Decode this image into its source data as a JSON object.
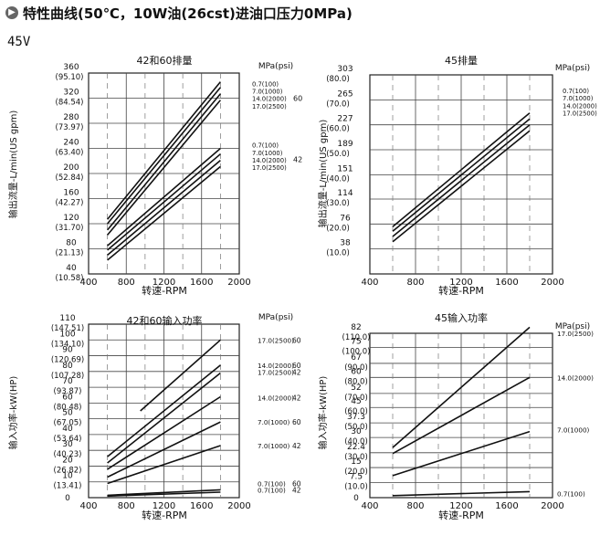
{
  "header": {
    "icon": "arrow-circle-icon",
    "title": "特性曲线(50℃，10W油(26cst)进油口压力0MPa)"
  },
  "model_label": "45V",
  "chart_data": [
    {
      "type": "line",
      "title": "42和60排量",
      "xlabel": "转速-RPM",
      "ylabel": "输出流量-L/min(US gpm)",
      "xlim": [
        400,
        2000
      ],
      "ylim": [
        40,
        360
      ],
      "xticks": [
        "400",
        "800",
        "1200",
        "1600",
        "2000"
      ],
      "yticks": [
        {
          "value": 360,
          "label": "360",
          "alt": "(95.10)"
        },
        {
          "value": 320,
          "label": "320",
          "alt": "(84.54)"
        },
        {
          "value": 280,
          "label": "280",
          "alt": "(73.97)"
        },
        {
          "value": 240,
          "label": "240",
          "alt": "(63.40)"
        },
        {
          "value": 200,
          "label": "200",
          "alt": "(52.84)"
        },
        {
          "value": 160,
          "label": "160",
          "alt": "(42.27)"
        },
        {
          "value": 120,
          "label": "120",
          "alt": "(31.70)"
        },
        {
          "value": 80,
          "label": "80",
          "alt": "(21.13)"
        },
        {
          "value": 40,
          "label": "40",
          "alt": "(10.58)"
        }
      ],
      "unit_label": "MPa(psi)",
      "groups": [
        {
          "label": "60",
          "items": [
            "0.7(100)",
            "7.0(1000)",
            "14.0(2000)",
            "17.0(2500)"
          ],
          "y": 316
        },
        {
          "label": "42",
          "items": [
            "0.7(100)",
            "7.0(1000)",
            "14.0(2000)",
            "17.0(2500)"
          ],
          "y": 218
        }
      ],
      "series": [
        {
          "name": "60 · 0.7(100)",
          "x": [
            600,
            1800
          ],
          "y": [
            127,
            346
          ]
        },
        {
          "name": "60 · 7.0(1000)",
          "x": [
            600,
            1800
          ],
          "y": [
            120,
            337
          ]
        },
        {
          "name": "60 · 14.0(2000)",
          "x": [
            600,
            1800
          ],
          "y": [
            110,
            327
          ]
        },
        {
          "name": "60 · 17.0(2500)",
          "x": [
            600,
            1800
          ],
          "y": [
            102,
            317
          ]
        },
        {
          "name": "42 · 0.7(100)",
          "x": [
            600,
            1800
          ],
          "y": [
            85,
            240
          ]
        },
        {
          "name": "42 · 7.0(1000)",
          "x": [
            600,
            1800
          ],
          "y": [
            78,
            231
          ]
        },
        {
          "name": "42 · 14.0(2000)",
          "x": [
            600,
            1800
          ],
          "y": [
            70,
            221
          ]
        },
        {
          "name": "42 · 17.0(2500)",
          "x": [
            600,
            1800
          ],
          "y": [
            62,
            211
          ]
        }
      ]
    },
    {
      "type": "line",
      "title": "45排量",
      "xlabel": "转速-RPM",
      "ylabel": "输出流量-L/min(US gpm)",
      "xlim": [
        400,
        2000
      ],
      "ylim": [
        0,
        303
      ],
      "xticks": [
        "400",
        "800",
        "1200",
        "1600",
        "2000"
      ],
      "yticks": [
        {
          "value": 303,
          "label": "303",
          "alt": "(80.0)"
        },
        {
          "value": 265,
          "label": "265",
          "alt": "(70.0)"
        },
        {
          "value": 227,
          "label": "227",
          "alt": "(60.0)"
        },
        {
          "value": 189,
          "label": "189",
          "alt": "(50.0)"
        },
        {
          "value": 151,
          "label": "151",
          "alt": "(40.0)"
        },
        {
          "value": 114,
          "label": "114",
          "alt": "(30.0)"
        },
        {
          "value": 76,
          "label": "76",
          "alt": "(20.0)"
        },
        {
          "value": 38,
          "label": "38",
          "alt": "(10.0)"
        }
      ],
      "unit_label": "MPa(psi)",
      "groups": [
        {
          "label": "",
          "items": [
            "0.7(100)",
            "7.0(1000)",
            "14.0(2000)",
            "17.0(2500)"
          ],
          "y": 253
        }
      ],
      "series": [
        {
          "name": "0.7(100)",
          "x": [
            600,
            1800
          ],
          "y": [
            72,
            245
          ]
        },
        {
          "name": "7.0(1000)",
          "x": [
            600,
            1800
          ],
          "y": [
            65,
            236
          ]
        },
        {
          "name": "14.0(2000)",
          "x": [
            600,
            1800
          ],
          "y": [
            57,
            227
          ]
        },
        {
          "name": "17.0(2500)",
          "x": [
            600,
            1800
          ],
          "y": [
            49,
            218
          ]
        }
      ]
    },
    {
      "type": "line",
      "title": "42和60输入功率",
      "xlabel": "转速-RPM",
      "ylabel": "输入功率-kW(HP)",
      "xlim": [
        400,
        2000
      ],
      "ylim": [
        0,
        110
      ],
      "xticks": [
        "400",
        "800",
        "1200",
        "1600",
        "2000"
      ],
      "yticks": [
        {
          "value": 110,
          "label": "110",
          "alt": "(147.51)"
        },
        {
          "value": 100,
          "label": "100",
          "alt": "(134.10)"
        },
        {
          "value": 90,
          "label": "90",
          "alt": "(120.69)"
        },
        {
          "value": 80,
          "label": "80",
          "alt": "(107.28)"
        },
        {
          "value": 70,
          "label": "70",
          "alt": "(93.87)"
        },
        {
          "value": 60,
          "label": "60",
          "alt": "(80.48)"
        },
        {
          "value": 50,
          "label": "50",
          "alt": "(67.05)"
        },
        {
          "value": 40,
          "label": "40",
          "alt": "(53.64)"
        },
        {
          "value": 30,
          "label": "30",
          "alt": "(40.23)"
        },
        {
          "value": 20,
          "label": "20",
          "alt": "(26.82)"
        },
        {
          "value": 10,
          "label": "10",
          "alt": "(13.41)"
        },
        {
          "value": 0,
          "label": "0",
          "alt": ""
        }
      ],
      "unit_label": "MPa(psi)",
      "line_labels": [
        {
          "text": "17.0(2500)",
          "group": "60",
          "y": 100
        },
        {
          "text": "14.0(2000)",
          "group": "60",
          "y": 84
        },
        {
          "text": "17.0(2500)",
          "group": "42",
          "y": 79.5
        },
        {
          "text": "14.0(2000)",
          "group": "42",
          "y": 63.5
        },
        {
          "text": "7.0(1000)",
          "group": "60",
          "y": 48
        },
        {
          "text": "7.0(1000)",
          "group": "42",
          "y": 33
        },
        {
          "text": "0.7(100)",
          "group": "60",
          "y": 9
        },
        {
          "text": "0.7(100)",
          "group": "42",
          "y": 5
        }
      ],
      "series": [
        {
          "name": "60 · 17.0(2500)",
          "x": [
            950,
            1800
          ],
          "y": [
            55,
            100
          ]
        },
        {
          "name": "60 · 14.0(2000)",
          "x": [
            600,
            1800
          ],
          "y": [
            26,
            84
          ]
        },
        {
          "name": "42 · 17.0(2500)",
          "x": [
            600,
            1800
          ],
          "y": [
            22,
            79
          ]
        },
        {
          "name": "42 · 14.0(2000)",
          "x": [
            600,
            1800
          ],
          "y": [
            18,
            64
          ]
        },
        {
          "name": "60 · 7.0(1000)",
          "x": [
            600,
            1800
          ],
          "y": [
            13,
            48
          ]
        },
        {
          "name": "42 · 7.0(1000)",
          "x": [
            600,
            1800
          ],
          "y": [
            9,
            33
          ]
        },
        {
          "name": "60 · 0.7(100)",
          "x": [
            600,
            1800
          ],
          "y": [
            1.5,
            5
          ]
        },
        {
          "name": "42 · 0.7(100)",
          "x": [
            600,
            1800
          ],
          "y": [
            1,
            3.5
          ]
        }
      ]
    },
    {
      "type": "line",
      "title": "45输入功率",
      "xlabel": "转速-RPM",
      "ylabel": "输入功率-kW(HP)",
      "xlim": [
        400,
        2000
      ],
      "ylim": [
        0,
        82
      ],
      "xticks": [
        "400",
        "800",
        "1200",
        "1600",
        "2000"
      ],
      "yticks": [
        {
          "value": 82,
          "label": "82",
          "alt": "(110.0)"
        },
        {
          "value": 75,
          "label": "75",
          "alt": "(100.0)"
        },
        {
          "value": 67,
          "label": "67",
          "alt": "(90.0)"
        },
        {
          "value": 60,
          "label": "60",
          "alt": "(80.0)"
        },
        {
          "value": 52,
          "label": "52",
          "alt": "(70.0)"
        },
        {
          "value": 45,
          "label": "45",
          "alt": "(60.0)"
        },
        {
          "value": 37.3,
          "label": "37.3",
          "alt": "(50.0)"
        },
        {
          "value": 30,
          "label": "30",
          "alt": "(40.0)"
        },
        {
          "value": 22.4,
          "label": "22.4",
          "alt": "(30.0)"
        },
        {
          "value": 15,
          "label": "15",
          "alt": "(20.0)"
        },
        {
          "value": 7.5,
          "label": "7.5",
          "alt": "(10.0)"
        },
        {
          "value": 0,
          "label": "0",
          "alt": ""
        }
      ],
      "unit_label": "MPa(psi)",
      "line_labels": [
        {
          "text": "17.0(2500)",
          "group": "",
          "y": 82
        },
        {
          "text": "14.0(2000)",
          "group": "",
          "y": 60
        },
        {
          "text": "7.0(1000)",
          "group": "",
          "y": 34
        },
        {
          "text": "0.7(100)",
          "group": "",
          "y": 2
        }
      ],
      "series": [
        {
          "name": "17.0(2500)",
          "x": [
            600,
            1800
          ],
          "y": [
            25,
            85
          ]
        },
        {
          "name": "14.0(2000)",
          "x": [
            600,
            1800
          ],
          "y": [
            22,
            60
          ]
        },
        {
          "name": "7.0(1000)",
          "x": [
            600,
            1800
          ],
          "y": [
            11,
            33
          ]
        },
        {
          "name": "0.7(100)",
          "x": [
            600,
            1800
          ],
          "y": [
            1,
            3
          ]
        }
      ]
    }
  ]
}
